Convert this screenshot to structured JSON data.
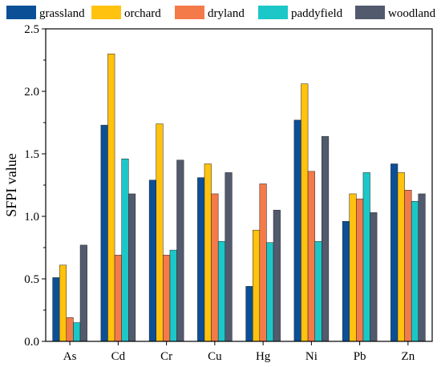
{
  "chart_data": {
    "type": "bar",
    "title": "",
    "xlabel": "",
    "ylabel": "SFPI value",
    "ylim": [
      0.0,
      2.5
    ],
    "yticks": [
      "0.0",
      "0.5",
      "1.0",
      "1.5",
      "2.0",
      "2.5"
    ],
    "categories": [
      "As",
      "Cd",
      "Cr",
      "Cu",
      "Hg",
      "Ni",
      "Pb",
      "Zn"
    ],
    "legend_position": "top",
    "grid": false,
    "series": [
      {
        "name": "grassland",
        "color": "#0b4f97",
        "values": [
          0.51,
          1.73,
          1.29,
          1.31,
          0.44,
          1.77,
          0.96,
          1.42
        ]
      },
      {
        "name": "orchard",
        "color": "#ffc20e",
        "values": [
          0.61,
          2.3,
          1.74,
          1.42,
          0.89,
          2.06,
          1.18,
          1.35
        ]
      },
      {
        "name": "dryland",
        "color": "#f47a4a",
        "values": [
          0.19,
          0.69,
          0.69,
          1.18,
          1.26,
          1.36,
          1.14,
          1.21
        ]
      },
      {
        "name": "paddyfield",
        "color": "#1cc7c7",
        "values": [
          0.15,
          1.46,
          0.73,
          0.8,
          0.79,
          0.8,
          1.35,
          1.12
        ]
      },
      {
        "name": "woodland",
        "color": "#525a6e",
        "values": [
          0.77,
          1.18,
          1.45,
          1.35,
          1.05,
          1.64,
          1.03,
          1.18
        ]
      }
    ]
  }
}
